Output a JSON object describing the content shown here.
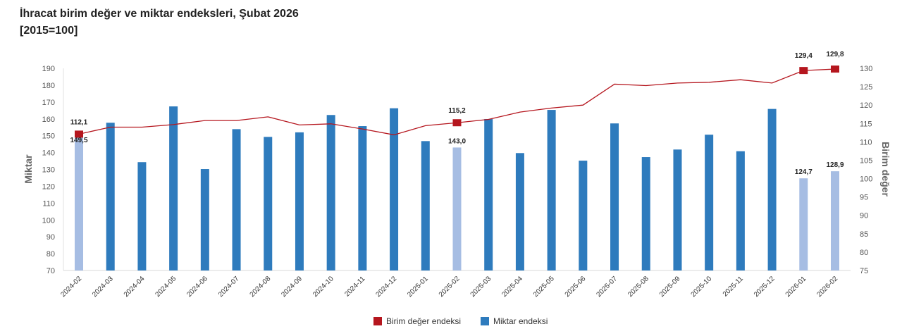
{
  "title": "İhracat birim değer ve miktar endeksleri, Şubat 2026",
  "subtitle": "[2015=100]",
  "chart_data": {
    "type": "bar+line",
    "title": "İhracat birim değer ve miktar endeksleri, Şubat 2026",
    "subtitle": "[2015=100]",
    "categories": [
      "2024-02",
      "2024-03",
      "2024-04",
      "2024-05",
      "2024-06",
      "2024-07",
      "2024-08",
      "2024-09",
      "2024-10",
      "2024-11",
      "2024-12",
      "2025-01",
      "2025-02",
      "2025-03",
      "2025-04",
      "2025-05",
      "2025-06",
      "2025-07",
      "2025-08",
      "2025-09",
      "2025-10",
      "2025-11",
      "2025-12",
      "2026-01",
      "2026-02"
    ],
    "series": [
      {
        "name": "Miktar endeksi",
        "type": "bar",
        "axis": "left",
        "color": "#2e7bbd",
        "highlight_color": "#a6bde3",
        "values": [
          149.5,
          157.7,
          134.3,
          167.4,
          130.2,
          153.9,
          149.3,
          152.0,
          162.3,
          155.7,
          166.3,
          146.8,
          143.0,
          159.9,
          139.7,
          165.3,
          135.2,
          157.3,
          137.3,
          141.8,
          150.6,
          140.8,
          165.9,
          124.7,
          128.9
        ],
        "highlighted": [
          0,
          12,
          23,
          24
        ],
        "labels": {
          "0": "149,5",
          "12": "143,0",
          "23": "124,7",
          "24": "128,9"
        }
      },
      {
        "name": "Birim değer endeksi",
        "type": "line",
        "axis": "right",
        "color": "#b5161e",
        "values": [
          112.1,
          114.0,
          114.0,
          114.7,
          115.8,
          115.8,
          116.8,
          114.6,
          114.9,
          113.5,
          111.9,
          114.4,
          115.2,
          116.1,
          118.1,
          119.2,
          120.0,
          125.7,
          125.3,
          126.0,
          126.2,
          126.9,
          126.0,
          129.4,
          129.8
        ],
        "markers": [
          0,
          12,
          23,
          24
        ],
        "labels": {
          "0": "112,1",
          "12": "115,2",
          "23": "129,4",
          "24": "129,8"
        }
      }
    ],
    "ylabel": "Miktar",
    "y2label": "Birim değer",
    "ylim": [
      70,
      190
    ],
    "yticks": [
      70,
      80,
      90,
      100,
      110,
      120,
      130,
      140,
      150,
      160,
      170,
      180,
      190
    ],
    "y2lim": [
      75,
      130
    ],
    "y2ticks": [
      75,
      80,
      85,
      90,
      95,
      100,
      105,
      110,
      115,
      120,
      125,
      130
    ],
    "grid": false,
    "legend": {
      "position": "bottom",
      "items": [
        "Birim değer endeksi",
        "Miktar endeksi"
      ]
    }
  }
}
